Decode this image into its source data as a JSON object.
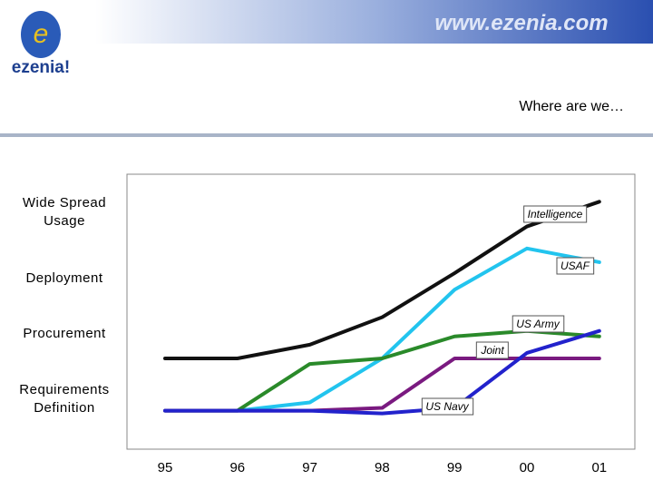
{
  "header": {
    "logo": "ezenia!",
    "url": "www.ezenia.com"
  },
  "chart_data": {
    "type": "line",
    "title": "Where are we…",
    "categories": [
      "95",
      "96",
      "97",
      "98",
      "99",
      "00",
      "01"
    ],
    "ylim": [
      0,
      100
    ],
    "yticks": [
      {
        "value": 18,
        "label": "Requirements Definition"
      },
      {
        "value": 42,
        "label": "Procurement"
      },
      {
        "value": 62,
        "label": "Deployment"
      },
      {
        "value": 86,
        "label": "Wide Spread Usage"
      }
    ],
    "series": [
      {
        "name": "Intelligence",
        "color": "#111111",
        "values": [
          33,
          33,
          38,
          48,
          64,
          81,
          90
        ]
      },
      {
        "name": "USAF",
        "color": "#22c4ee",
        "values": [
          null,
          14,
          17,
          33,
          58,
          73,
          68
        ]
      },
      {
        "name": "US Army",
        "color": "#2a8a2a",
        "values": [
          14,
          14,
          31,
          33,
          41,
          43,
          41
        ]
      },
      {
        "name": "Joint",
        "color": "#7a1a80",
        "values": [
          14,
          14,
          14,
          15,
          33,
          33,
          33
        ]
      },
      {
        "name": "US Navy",
        "color": "#2222cc",
        "values": [
          14,
          14,
          14,
          13,
          15,
          35,
          43
        ]
      }
    ]
  }
}
